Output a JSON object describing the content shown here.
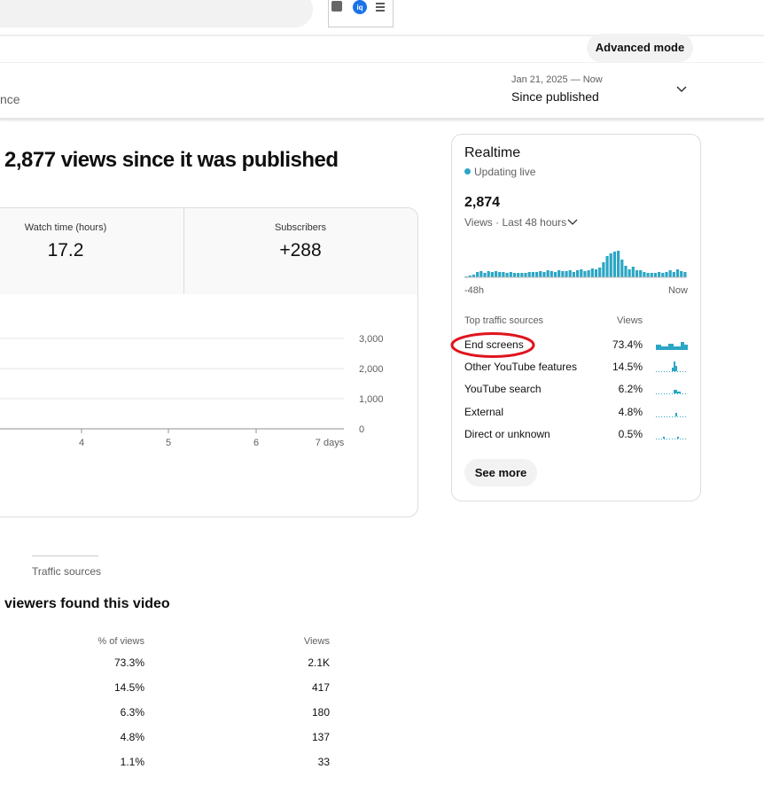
{
  "toolbar": {
    "icon_badge": "iq"
  },
  "header": {
    "advanced_mode": "Advanced mode",
    "tab_partial": "nce",
    "date_range": "Jan 21, 2025 — Now",
    "period": "Since published"
  },
  "summary": {
    "headline": "2,877 views since it was published",
    "metrics": [
      {
        "label": "Watch time (hours)",
        "value": "17.2"
      },
      {
        "label": "Subscribers",
        "value": "+288"
      }
    ],
    "chart": {
      "y_labels": [
        "3,000",
        "2,000",
        "1,000",
        "0"
      ],
      "x_labels": [
        "4",
        "5",
        "6",
        "7 days"
      ]
    }
  },
  "realtime": {
    "title": "Realtime",
    "status": "Updating live",
    "count": "2,874",
    "metric": "Views · Last 48 hours",
    "sparkline": [
      1,
      2,
      3,
      6,
      7,
      5,
      7,
      6,
      7,
      6,
      6,
      5,
      6,
      5,
      5,
      5,
      5,
      6,
      6,
      6,
      7,
      6,
      8,
      7,
      6,
      8,
      7,
      7,
      8,
      6,
      8,
      9,
      7,
      8,
      10,
      9,
      11,
      17,
      24,
      27,
      29,
      30,
      20,
      13,
      9,
      12,
      8,
      8,
      6,
      5,
      5,
      5,
      6,
      5,
      6,
      8,
      6,
      9,
      7,
      6
    ],
    "start_label": "-48h",
    "end_label": "Now",
    "sources_header": "Top traffic sources",
    "views_header": "Views",
    "sources": [
      {
        "name": "End screens",
        "share": "73.4%"
      },
      {
        "name": "Other YouTube features",
        "share": "14.5%"
      },
      {
        "name": "YouTube search",
        "share": "6.2%"
      },
      {
        "name": "External",
        "share": "4.8%"
      },
      {
        "name": "Direct or unknown",
        "share": "0.5%"
      }
    ],
    "see_more": "See more"
  },
  "traffic": {
    "tab": "Traffic sources",
    "heading": "viewers found this video",
    "columns": [
      "% of views",
      "Views"
    ],
    "rows": [
      [
        "73.3%",
        "2.1K"
      ],
      [
        "14.5%",
        "417"
      ],
      [
        "6.3%",
        "180"
      ],
      [
        "4.8%",
        "137"
      ],
      [
        "1.1%",
        "33"
      ]
    ]
  }
}
